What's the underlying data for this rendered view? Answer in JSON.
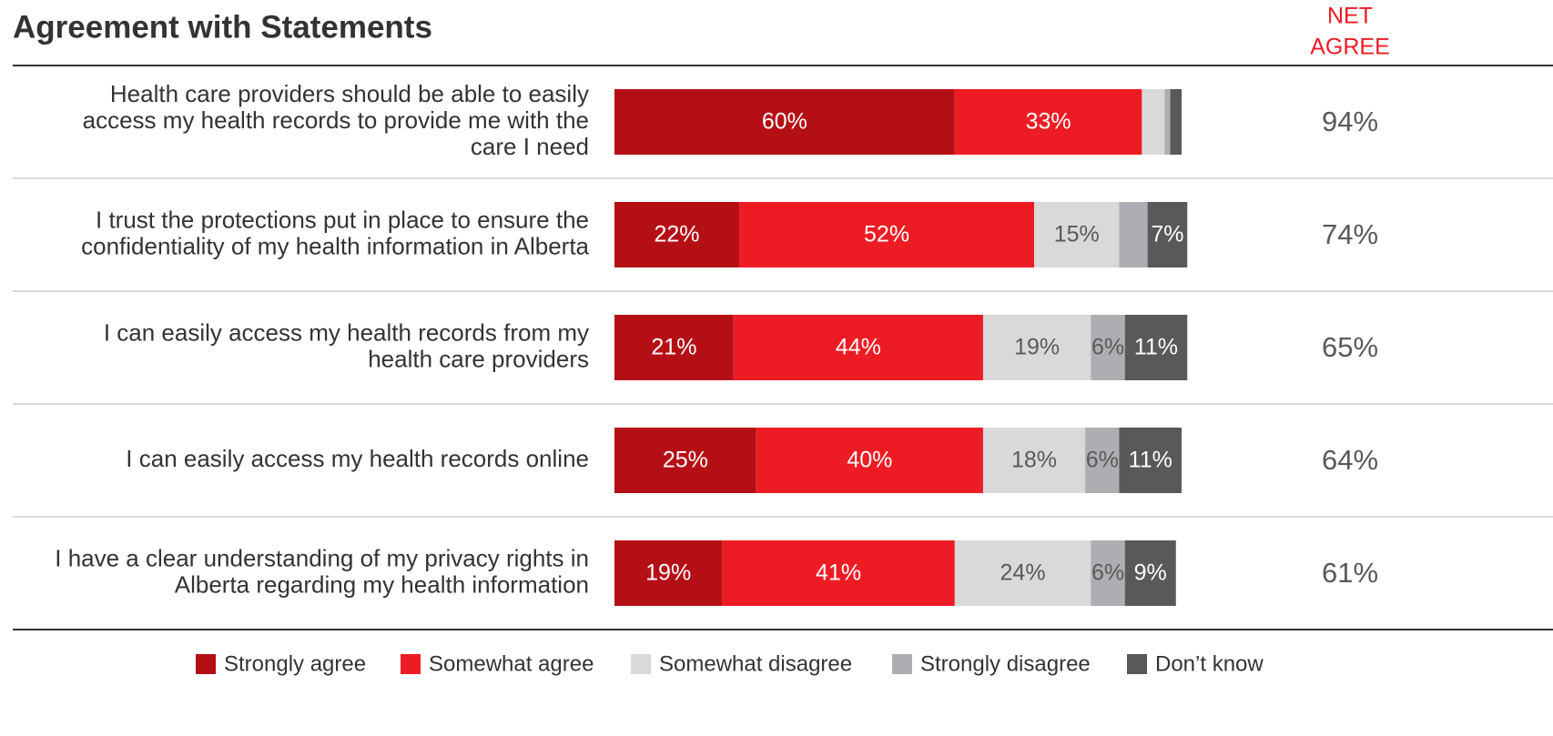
{
  "chart_data": {
    "type": "stacked_bar_horizontal",
    "title": "Agreement with Statements",
    "categories": [
      "Health care providers should be able to easily\naccess my health records to provide me with the\ncare I need",
      "I trust the protections put in place to ensure the\nconfidentiality of my health information in Alberta",
      "I can easily access my health records from my\nhealth care providers",
      "I can easily access my health records online",
      "I have a clear understanding of my privacy rights in\nAlberta regarding my health information"
    ],
    "series": [
      {
        "name": "Strongly agree",
        "color": "#b50f16",
        "label_color": "#ffffff",
        "values": [
          60,
          22,
          21,
          25,
          19
        ],
        "value_labels": [
          "60%",
          "22%",
          "21%",
          "25%",
          "19%"
        ]
      },
      {
        "name": "Somewhat agree",
        "color": "#ed1c24",
        "label_color": "#ffffff",
        "values": [
          33,
          52,
          44,
          40,
          41
        ],
        "value_labels": [
          "33%",
          "52%",
          "44%",
          "40%",
          "41%"
        ]
      },
      {
        "name": "Somewhat disagree",
        "color": "#d9d9d9",
        "label_color": "#595959",
        "values": [
          4,
          15,
          19,
          18,
          24
        ],
        "value_labels": [
          null,
          "15%",
          "19%",
          "18%",
          "24%"
        ]
      },
      {
        "name": "Strongly disagree",
        "color": "#aeaeb2",
        "label_color": "#595959",
        "values": [
          1,
          5,
          6,
          6,
          6
        ],
        "value_labels": [
          null,
          null,
          "6%",
          "6%",
          "6%"
        ]
      },
      {
        "name": "Don’t know",
        "color": "#595959",
        "label_color": "#ffffff",
        "values": [
          2,
          7,
          11,
          11,
          9
        ],
        "value_labels": [
          null,
          "7%",
          "11%",
          "11%",
          "9%"
        ]
      }
    ],
    "xlim": [
      0,
      100
    ],
    "net_agree": {
      "title": [
        "NET",
        "AGREE"
      ],
      "values": [
        94,
        74,
        65,
        64,
        61
      ],
      "value_labels": [
        "94%",
        "74%",
        "65%",
        "64%",
        "61%"
      ]
    }
  }
}
